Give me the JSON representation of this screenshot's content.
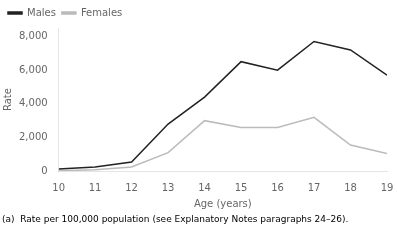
{
  "chart_data": {
    "type": "line",
    "x": [
      10,
      11,
      12,
      13,
      14,
      15,
      16,
      17,
      18,
      19
    ],
    "series": [
      {
        "name": "Males",
        "color": "#222222",
        "values": [
          130,
          250,
          550,
          2800,
          4400,
          6500,
          6000,
          7700,
          7200,
          5700
        ]
      },
      {
        "name": "Females",
        "color": "#bbbbbb",
        "values": [
          30,
          80,
          250,
          1100,
          3000,
          2600,
          2600,
          3200,
          1550,
          1050
        ]
      }
    ],
    "xlabel": "Age (years)",
    "ylabel": "Rate",
    "xlim": [
      10,
      19
    ],
    "xticks": [
      10,
      11,
      12,
      13,
      14,
      15,
      16,
      17,
      18,
      19
    ],
    "ylim": [
      0,
      8500
    ],
    "yticks": [
      0,
      {
        "value": 2000,
        "label": "2,000"
      },
      {
        "value": 4000,
        "label": "4,000"
      },
      {
        "value": 6000,
        "label": "6,000"
      },
      {
        "value": 8000,
        "label": "8,000"
      }
    ],
    "footnote": "(a)  Rate per 100,000 population (see Explanatory Notes paragraphs 24–26).",
    "legend": "upper left",
    "grid": false
  }
}
